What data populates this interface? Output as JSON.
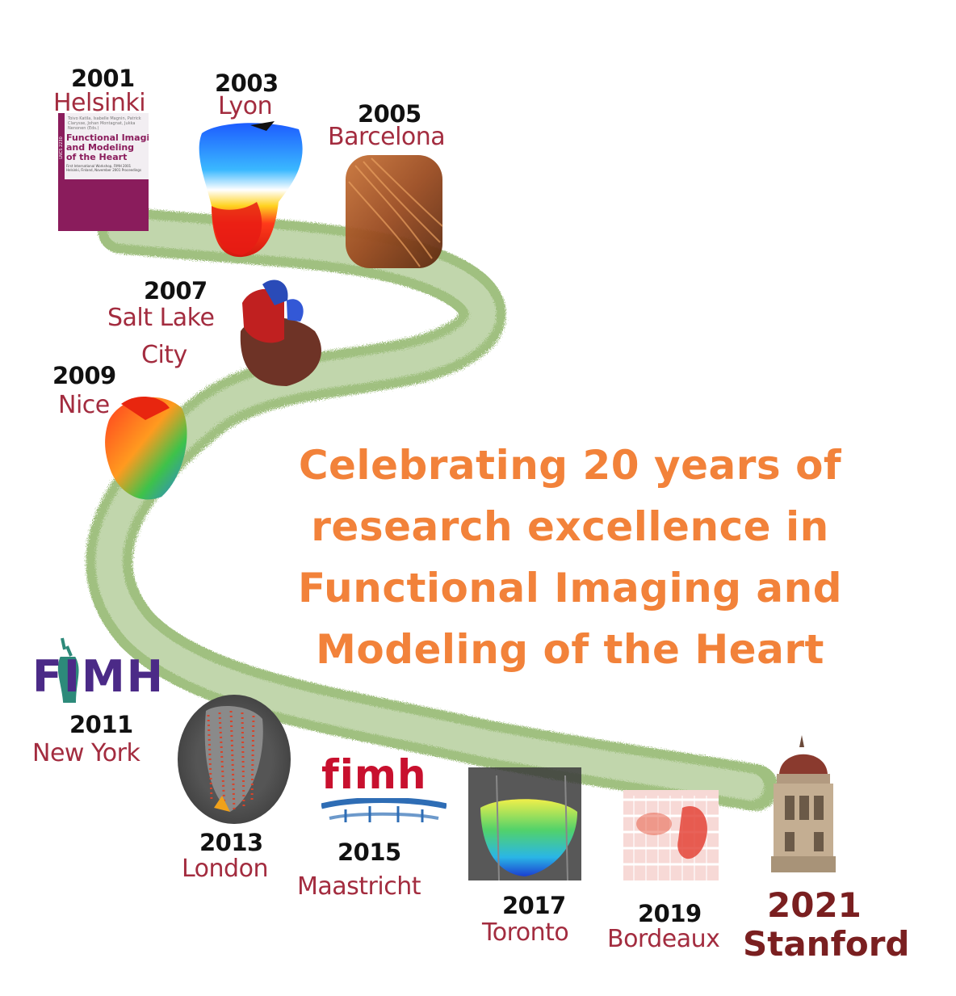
{
  "headline": [
    "Celebrating 20 years of",
    "research excellence in",
    "Functional Imaging and",
    "Modeling of the Heart"
  ],
  "milestones": [
    {
      "year": "2001",
      "city": "Helsinki"
    },
    {
      "year": "2003",
      "city": "Lyon"
    },
    {
      "year": "2005",
      "city": "Barcelona"
    },
    {
      "year": "2007",
      "city_line1": "Salt Lake",
      "city_line2": "City"
    },
    {
      "year": "2009",
      "city": "Nice"
    },
    {
      "year": "2011",
      "city": "New York"
    },
    {
      "year": "2013",
      "city": "London"
    },
    {
      "year": "2015",
      "city": "Maastricht"
    },
    {
      "year": "2017",
      "city": "Toronto"
    },
    {
      "year": "2019",
      "city": "Bordeaux"
    },
    {
      "year": "2021",
      "city": "Stanford"
    }
  ],
  "book_cover": {
    "authors": "Toivo Katila, Isabelle Magnin, Patrick Clarysse, Johan Montagnat, Jukka Nenonen (Eds.)",
    "title_line1": "Functional Imaging",
    "title_line2": "and Modeling",
    "title_line3": "of the Heart",
    "subtitle": "First International Workshop, FIMH 2001 Helsinki, Finland, November 2001 Proceedings",
    "series": "LNCS 2230"
  },
  "logos": {
    "new_york": "FIMH",
    "maastricht": "fimh"
  },
  "colors": {
    "path": "#8fb56a",
    "headline": "#f2823a",
    "city": "#a32c3f",
    "final": "#7a1f20",
    "book": "#8a1c5c"
  }
}
